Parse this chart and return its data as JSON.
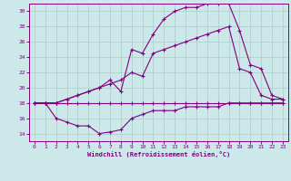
{
  "background_color": "#cce8e8",
  "grid_color": "#aacccc",
  "line_color": "#800080",
  "xlim": [
    -0.5,
    23.5
  ],
  "ylim": [
    13,
    31
  ],
  "xticks": [
    0,
    1,
    2,
    3,
    4,
    5,
    6,
    7,
    8,
    9,
    10,
    11,
    12,
    13,
    14,
    15,
    16,
    17,
    18,
    19,
    20,
    21,
    22,
    23
  ],
  "yticks": [
    14,
    16,
    18,
    20,
    22,
    24,
    26,
    28,
    30
  ],
  "xlabel": "Windchill (Refroidissement éolien,°C)",
  "line1_x": [
    0,
    1,
    2,
    3,
    4,
    5,
    6,
    7,
    8,
    9,
    10,
    11,
    12,
    13,
    14,
    15,
    16,
    17,
    18,
    19,
    20,
    21,
    22,
    23
  ],
  "line1_y": [
    18,
    18,
    18,
    18,
    18,
    18,
    18,
    18,
    18,
    18,
    18,
    18,
    18,
    18,
    18,
    18,
    18,
    18,
    18,
    18,
    18,
    18,
    18,
    18
  ],
  "line2_x": [
    0,
    1,
    2,
    3,
    4,
    5,
    6,
    7,
    8,
    9,
    10,
    11,
    12,
    13,
    14,
    15,
    16,
    17,
    18,
    19,
    20,
    21,
    22,
    23
  ],
  "line2_y": [
    18,
    18,
    16,
    15.5,
    15,
    15,
    14,
    14.2,
    14.5,
    16,
    16.5,
    17,
    17,
    17,
    17.5,
    17.5,
    17.5,
    17.5,
    18,
    18,
    18,
    18,
    18,
    18
  ],
  "line3_x": [
    0,
    1,
    2,
    3,
    4,
    5,
    6,
    7,
    8,
    9,
    10,
    11,
    12,
    13,
    14,
    15,
    16,
    17,
    18,
    19,
    20,
    21,
    22,
    23
  ],
  "line3_y": [
    18,
    18,
    18,
    18.5,
    19,
    19.5,
    20,
    21,
    19.5,
    25,
    24.5,
    27,
    29,
    30,
    30.5,
    30.5,
    31,
    31,
    31,
    27.5,
    23,
    22.5,
    19,
    18.5
  ],
  "line4_x": [
    0,
    1,
    2,
    3,
    4,
    5,
    6,
    7,
    8,
    9,
    10,
    11,
    12,
    13,
    14,
    15,
    16,
    17,
    18,
    19,
    20,
    21,
    22,
    23
  ],
  "line4_y": [
    18,
    18,
    18,
    18.5,
    19,
    19.5,
    20,
    20.5,
    21,
    22,
    21.5,
    24.5,
    25,
    25.5,
    26,
    26.5,
    27,
    27.5,
    28,
    22.5,
    22,
    19,
    18.5,
    18.5
  ]
}
